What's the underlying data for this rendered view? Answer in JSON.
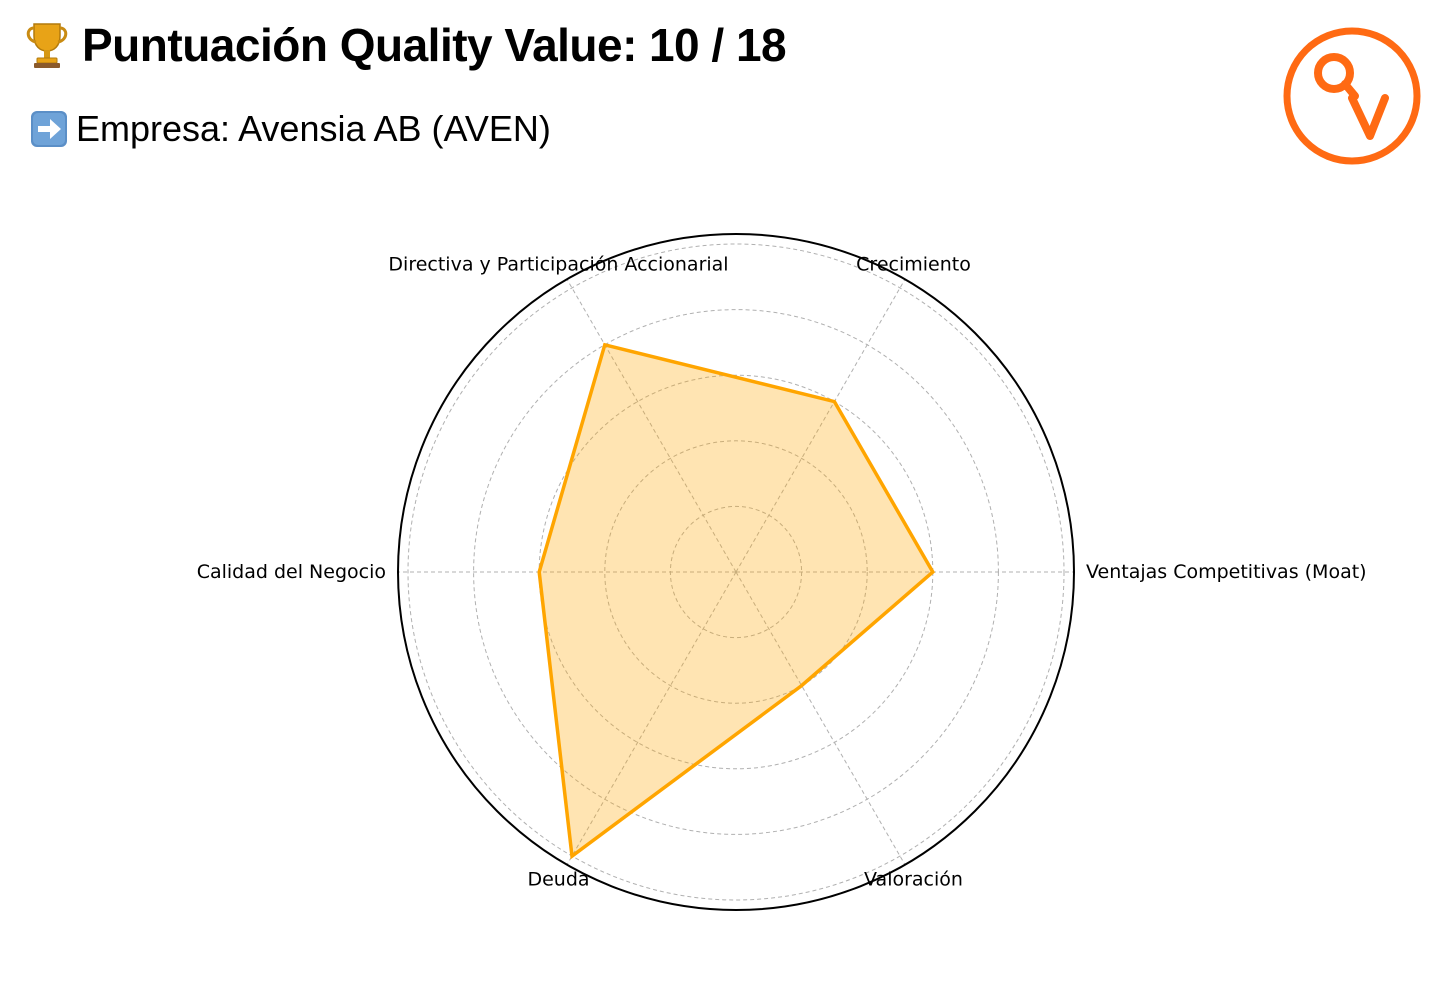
{
  "header": {
    "title_label": "Puntuación Quality Value:",
    "score_text": "10 / 18",
    "company_label": "Empresa: Avensia AB (AVEN)",
    "trophy_icon": "trophy-icon",
    "arrow_icon": "right-arrow-icon"
  },
  "logo": {
    "icon": "quality-value-logo-icon",
    "color": "#FF6A13"
  },
  "chart_data": {
    "type": "radar",
    "title": "",
    "categories": [
      "Ventajas Competitivas (Moat)",
      "Crecimiento",
      "Directiva y Participación Accionarial",
      "Calidad del Negocio",
      "Deuda",
      "Valoración"
    ],
    "series": [
      {
        "values": [
          3,
          3,
          4,
          3,
          5,
          2
        ]
      }
    ],
    "rlim": [
      0,
      5
    ],
    "rticks": [
      1,
      2,
      3,
      4,
      5
    ],
    "grid": true,
    "line_color": "#FFA500",
    "fill_color": "#FFA500",
    "fill_opacity": 0.3
  }
}
